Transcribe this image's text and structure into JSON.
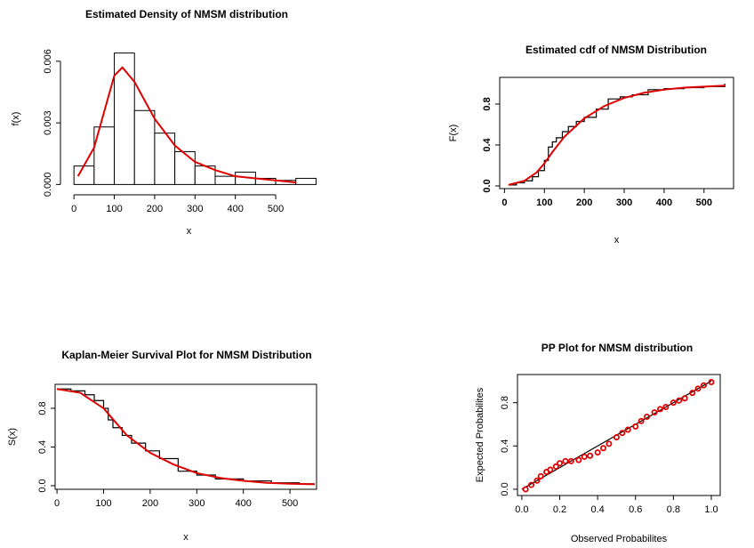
{
  "chart_data": [
    {
      "type": "histogram",
      "title": "Estimated Density of NMSM distribution",
      "x_label": "x",
      "y_label": "f(x)",
      "box": false,
      "bold_ticks": false,
      "bins": [
        0,
        50,
        100,
        150,
        200,
        250,
        300,
        350,
        400,
        450,
        500,
        550,
        600
      ],
      "values": [
        0.0009,
        0.0028,
        0.0064,
        0.0036,
        0.0025,
        0.0016,
        0.0009,
        0.0004,
        0.0006,
        0.0003,
        0.0002,
        0.0003
      ],
      "bar_color": "#ffffff",
      "series": [
        {
          "style": "line",
          "color": "#e00000",
          "x": [
            10,
            50,
            100,
            120,
            150,
            200,
            250,
            300,
            350,
            400,
            450,
            500,
            550
          ],
          "values": [
            0.0004,
            0.0018,
            0.0053,
            0.0057,
            0.005,
            0.0032,
            0.0019,
            0.0011,
            0.0007,
            0.0004,
            0.0003,
            0.0002,
            0.0001
          ]
        }
      ],
      "xlim": [
        -18,
        588
      ],
      "ylim": [
        -0.0002,
        0.0066
      ],
      "xticks": [
        0,
        100,
        200,
        300,
        400,
        500
      ],
      "yticks": [
        {
          "value": 0,
          "label": "0.000"
        },
        {
          "value": 0.003,
          "label": "0.003"
        },
        {
          "value": 0.006,
          "label": "0.006"
        }
      ]
    },
    {
      "type": "line",
      "title": "Estimated cdf of NMSM Distribution",
      "x_label": "x",
      "y_label": "F(x)",
      "box": true,
      "bold_ticks": true,
      "series": [
        {
          "style": "step",
          "color": "#000000",
          "x": [
            10,
            30,
            50,
            70,
            85,
            100,
            110,
            120,
            130,
            145,
            160,
            180,
            200,
            230,
            260,
            290,
            320,
            360,
            400,
            450,
            500,
            552
          ],
          "values": [
            0.01,
            0.03,
            0.05,
            0.09,
            0.15,
            0.25,
            0.38,
            0.43,
            0.47,
            0.53,
            0.58,
            0.63,
            0.67,
            0.75,
            0.85,
            0.87,
            0.89,
            0.94,
            0.95,
            0.96,
            0.97,
            1.0
          ]
        },
        {
          "style": "line",
          "color": "#e00000",
          "x": [
            10,
            50,
            80,
            100,
            120,
            150,
            200,
            250,
            300,
            350,
            400,
            450,
            500,
            552
          ],
          "values": [
            0.01,
            0.05,
            0.13,
            0.22,
            0.33,
            0.48,
            0.66,
            0.78,
            0.86,
            0.91,
            0.94,
            0.96,
            0.97,
            0.98
          ]
        }
      ],
      "xlim": [
        -12,
        574
      ],
      "ylim": [
        -0.026,
        1.06
      ],
      "xticks": [
        0,
        100,
        200,
        300,
        400,
        500
      ],
      "yticks": [
        {
          "value": 0,
          "label": "0.0"
        },
        0.4,
        0.8
      ]
    },
    {
      "type": "line",
      "title": "Kaplan-Meier Survival Plot for NMSM Distribution",
      "x_label": "x",
      "y_label": "S(x)",
      "box": true,
      "bold_ticks": false,
      "series": [
        {
          "style": "step",
          "color": "#000000",
          "x": [
            0,
            30,
            60,
            80,
            100,
            110,
            120,
            140,
            160,
            190,
            220,
            260,
            300,
            340,
            400,
            460,
            520,
            552
          ],
          "values": [
            1.0,
            0.98,
            0.94,
            0.88,
            0.8,
            0.68,
            0.6,
            0.52,
            0.44,
            0.36,
            0.28,
            0.15,
            0.11,
            0.07,
            0.05,
            0.03,
            0.02,
            0.01
          ]
        },
        {
          "style": "line",
          "color": "#e00000",
          "x": [
            0,
            50,
            100,
            150,
            200,
            250,
            300,
            350,
            400,
            450,
            500,
            552
          ],
          "values": [
            1.0,
            0.96,
            0.8,
            0.52,
            0.34,
            0.22,
            0.13,
            0.08,
            0.05,
            0.03,
            0.02,
            0.015
          ]
        }
      ],
      "xlim": [
        -4,
        557
      ],
      "ylim": [
        -0.037,
        1.048
      ],
      "xticks": [
        0,
        100,
        200,
        300,
        400,
        500
      ],
      "yticks": [
        {
          "value": 0,
          "label": "0.0"
        },
        0.4,
        0.8
      ]
    },
    {
      "type": "scatter",
      "title": "PP Plot for NMSM distribution",
      "x_label": "Observed Probabilites",
      "y_label": "Expected Probabilites",
      "box": true,
      "bold_ticks": false,
      "series": [
        {
          "style": "line",
          "color": "#000000",
          "x": [
            0,
            1
          ],
          "values": [
            0,
            1
          ]
        },
        {
          "style": "points",
          "color": "#e00000",
          "x": [
            0.02,
            0.05,
            0.08,
            0.1,
            0.13,
            0.15,
            0.18,
            0.2,
            0.23,
            0.26,
            0.3,
            0.33,
            0.36,
            0.4,
            0.43,
            0.46,
            0.5,
            0.53,
            0.56,
            0.6,
            0.63,
            0.66,
            0.7,
            0.73,
            0.76,
            0.8,
            0.83,
            0.86,
            0.9,
            0.93,
            0.96,
            1.0
          ],
          "values": [
            0.0,
            0.04,
            0.08,
            0.12,
            0.16,
            0.18,
            0.21,
            0.24,
            0.26,
            0.26,
            0.27,
            0.3,
            0.31,
            0.34,
            0.38,
            0.42,
            0.48,
            0.52,
            0.55,
            0.58,
            0.63,
            0.67,
            0.71,
            0.74,
            0.76,
            0.8,
            0.82,
            0.84,
            0.89,
            0.93,
            0.96,
            0.99
          ]
        }
      ],
      "xlim": [
        -0.023,
        1.047
      ],
      "ylim": [
        -0.058,
        1.06
      ],
      "xticks": [
        {
          "value": 0,
          "label": "0.0"
        },
        0.2,
        0.4,
        0.6,
        0.8,
        {
          "value": 1,
          "label": "1.0"
        }
      ],
      "yticks": [
        {
          "value": 0,
          "label": "0.0"
        },
        0.4,
        0.8
      ]
    }
  ]
}
